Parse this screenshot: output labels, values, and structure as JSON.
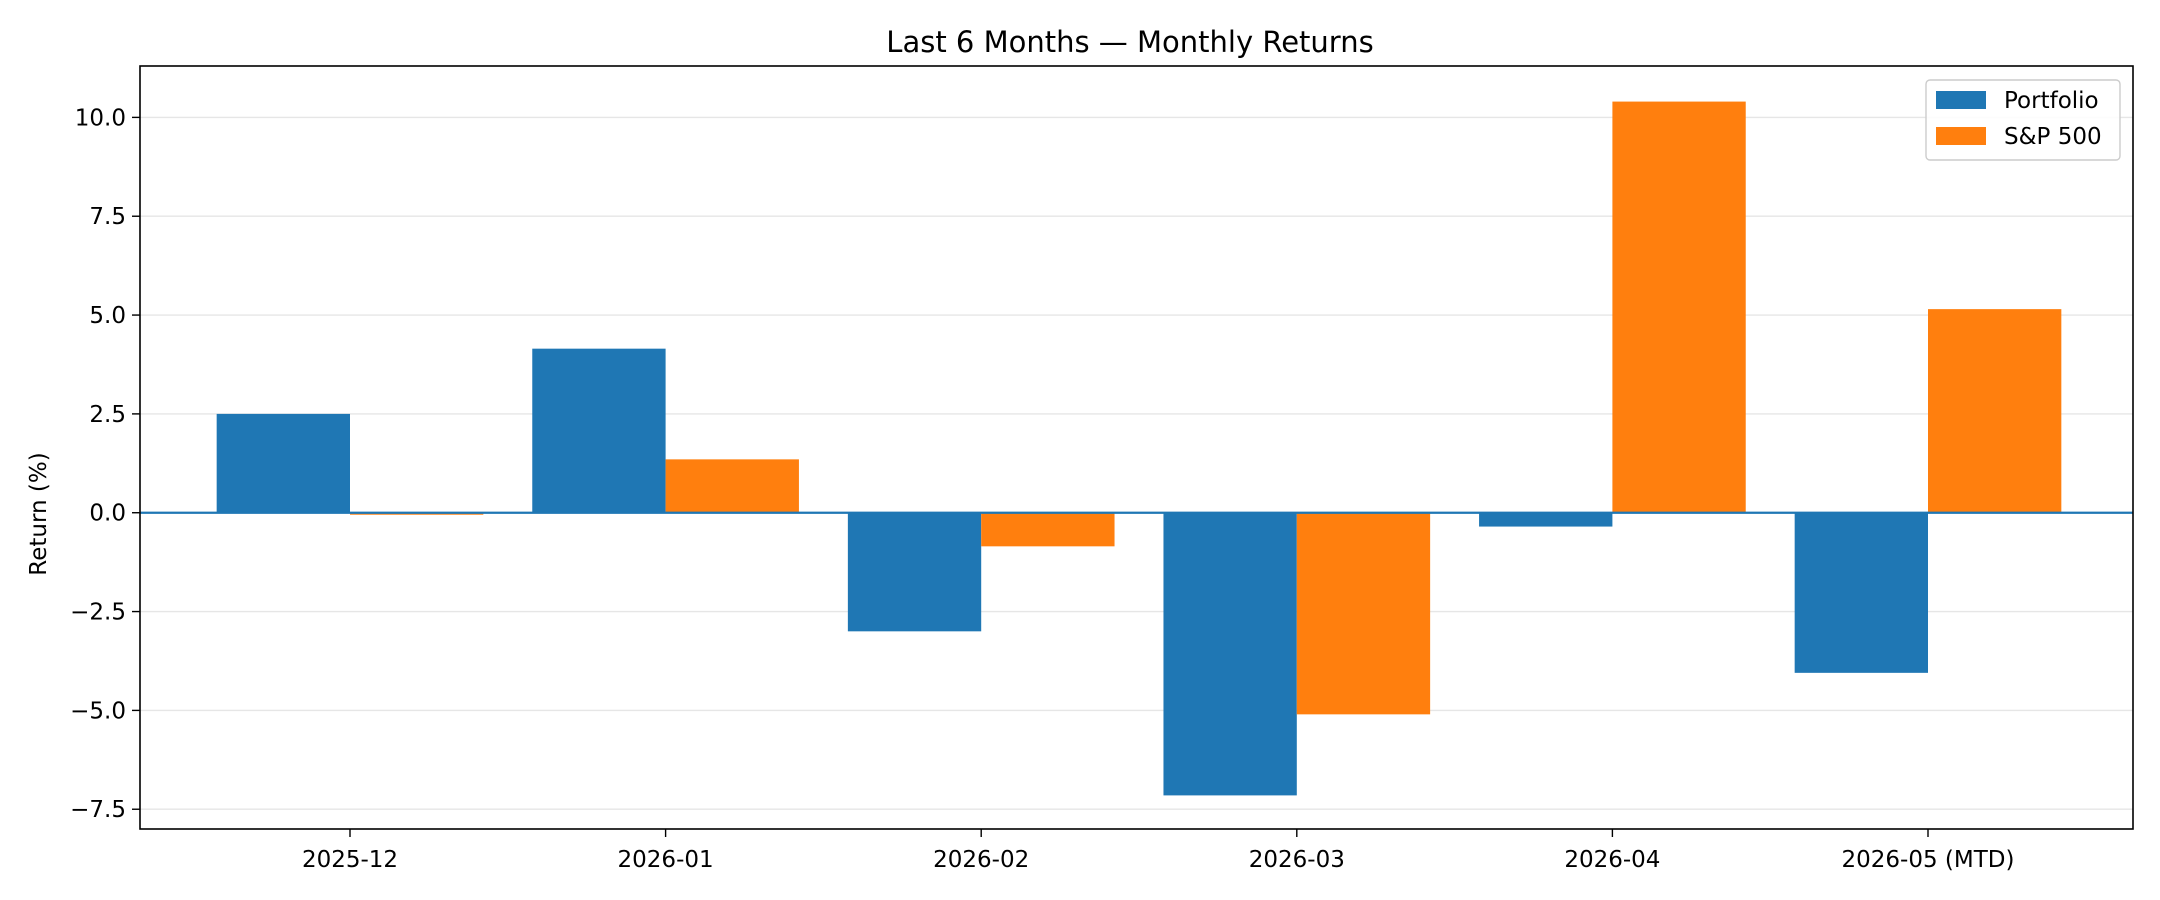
{
  "chart_data": {
    "type": "bar",
    "title": "Last 6 Months — Monthly Returns",
    "xlabel": "",
    "ylabel": "Return (%)",
    "categories": [
      "2025-12",
      "2026-01",
      "2026-02",
      "2026-03",
      "2026-04",
      "2026-05 (MTD)"
    ],
    "series": [
      {
        "name": "Portfolio",
        "color": "#1f77b4",
        "values": [
          2.5,
          4.15,
          -3.0,
          -7.15,
          -0.35,
          -4.05
        ]
      },
      {
        "name": "S&P 500",
        "color": "#ff7f0e",
        "values": [
          -0.05,
          1.35,
          -0.85,
          -5.1,
          10.4,
          5.15
        ]
      }
    ],
    "ylim": [
      -8.0,
      11.3
    ],
    "yticks": [
      10.0,
      7.5,
      5.0,
      2.5,
      0.0,
      -2.5,
      -5.0,
      -7.5
    ],
    "ytick_labels": [
      "10.0",
      "7.5",
      "5.0",
      "2.5",
      "0.0",
      "−2.5",
      "−5.0",
      "−7.5"
    ],
    "grid": "horizontal",
    "zero_line": true,
    "zero_line_color": "#1f77b4",
    "legend": "top-right"
  }
}
